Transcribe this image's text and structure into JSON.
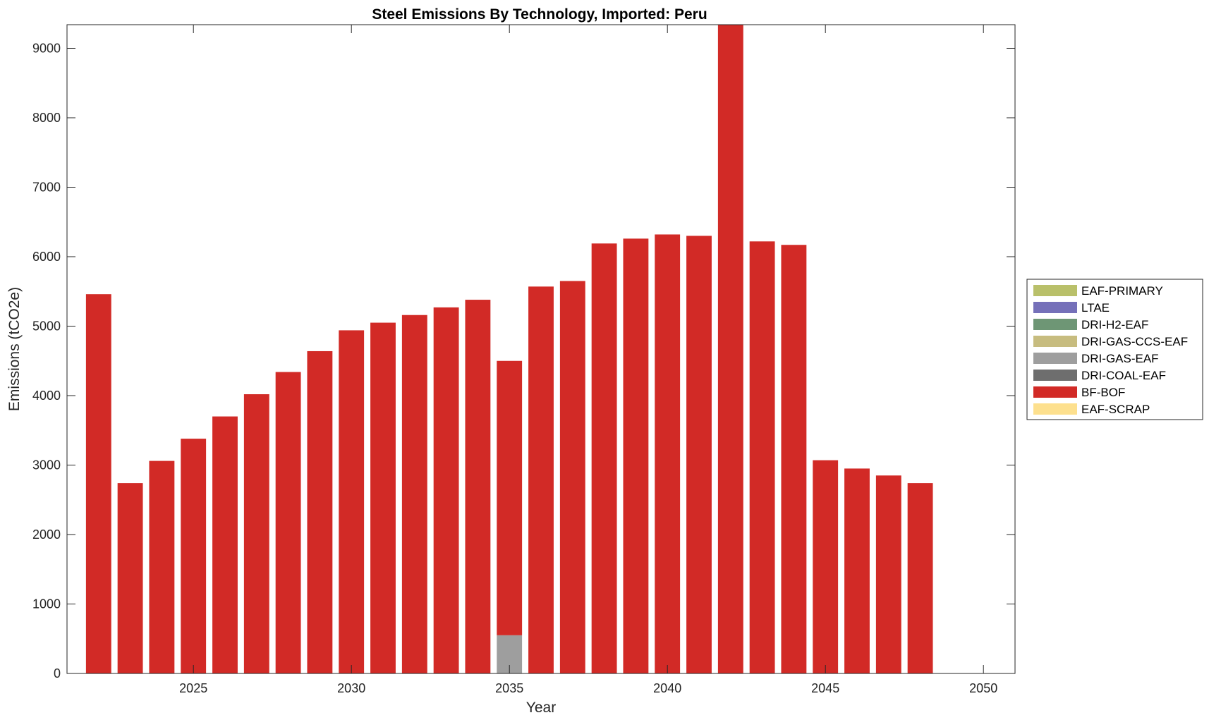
{
  "chart_data": {
    "type": "bar",
    "stacked": true,
    "title": "Steel Emissions By Technology, Imported: Peru",
    "xlabel": "Year",
    "ylabel": "Emissions (tCO2e)",
    "xlim": [
      2021,
      2051
    ],
    "ylim": [
      0,
      9340
    ],
    "x_ticks": [
      2025,
      2030,
      2035,
      2040,
      2045,
      2050
    ],
    "y_ticks": [
      0,
      1000,
      2000,
      3000,
      4000,
      5000,
      6000,
      7000,
      8000,
      9000
    ],
    "grid": false,
    "legend_position": "right",
    "years": [
      2022,
      2023,
      2024,
      2025,
      2026,
      2027,
      2028,
      2029,
      2030,
      2031,
      2032,
      2033,
      2034,
      2035,
      2036,
      2037,
      2038,
      2039,
      2040,
      2041,
      2042,
      2043,
      2044,
      2045,
      2046,
      2047,
      2048
    ],
    "series": [
      {
        "name": "EAF-PRIMARY",
        "color": "#b9c06a",
        "values": [
          0,
          0,
          0,
          0,
          0,
          0,
          0,
          0,
          0,
          0,
          0,
          0,
          0,
          0,
          0,
          0,
          0,
          0,
          0,
          0,
          0,
          0,
          0,
          0,
          0,
          0,
          0
        ]
      },
      {
        "name": "LTAE",
        "color": "#7570b9",
        "values": [
          0,
          0,
          0,
          0,
          0,
          0,
          0,
          0,
          0,
          0,
          0,
          0,
          0,
          0,
          0,
          0,
          0,
          0,
          0,
          0,
          0,
          0,
          0,
          0,
          0,
          0,
          0
        ]
      },
      {
        "name": "DRI-H2-EAF",
        "color": "#6e9675",
        "values": [
          0,
          0,
          0,
          0,
          0,
          0,
          0,
          0,
          0,
          0,
          0,
          0,
          0,
          0,
          0,
          0,
          0,
          0,
          0,
          0,
          0,
          0,
          0,
          0,
          0,
          0,
          0
        ]
      },
      {
        "name": "DRI-GAS-CCS-EAF",
        "color": "#c7bc7f",
        "values": [
          0,
          0,
          0,
          0,
          0,
          0,
          0,
          0,
          0,
          0,
          0,
          0,
          0,
          0,
          0,
          0,
          0,
          0,
          0,
          0,
          0,
          0,
          0,
          0,
          0,
          0,
          0
        ]
      },
      {
        "name": "DRI-GAS-EAF",
        "color": "#9e9e9e",
        "values": [
          0,
          0,
          0,
          0,
          0,
          0,
          0,
          0,
          0,
          0,
          0,
          0,
          0,
          550,
          0,
          0,
          0,
          0,
          0,
          0,
          0,
          0,
          0,
          0,
          0,
          0,
          0
        ]
      },
      {
        "name": "DRI-COAL-EAF",
        "color": "#6e6e6e",
        "values": [
          0,
          0,
          0,
          0,
          0,
          0,
          0,
          0,
          0,
          0,
          0,
          0,
          0,
          0,
          0,
          0,
          0,
          0,
          0,
          0,
          0,
          0,
          0,
          0,
          0,
          0,
          0
        ]
      },
      {
        "name": "BF-BOF",
        "color": "#d22a26",
        "values": [
          5460,
          2740,
          3060,
          3380,
          3700,
          4020,
          4340,
          4640,
          4940,
          5050,
          5160,
          5270,
          5380,
          3950,
          5570,
          5650,
          6190,
          6260,
          6320,
          6300,
          9340,
          6220,
          6170,
          3070,
          2950,
          2850,
          2740
        ]
      },
      {
        "name": "EAF-SCRAP",
        "color": "#fde08e",
        "values": [
          0,
          0,
          0,
          0,
          0,
          0,
          0,
          0,
          0,
          0,
          0,
          0,
          0,
          0,
          0,
          0,
          0,
          0,
          0,
          0,
          0,
          0,
          0,
          0,
          0,
          0,
          0
        ]
      }
    ],
    "legend_order": [
      "EAF-PRIMARY",
      "LTAE",
      "DRI-H2-EAF",
      "DRI-GAS-CCS-EAF",
      "DRI-GAS-EAF",
      "DRI-COAL-EAF",
      "BF-BOF",
      "EAF-SCRAP"
    ]
  }
}
